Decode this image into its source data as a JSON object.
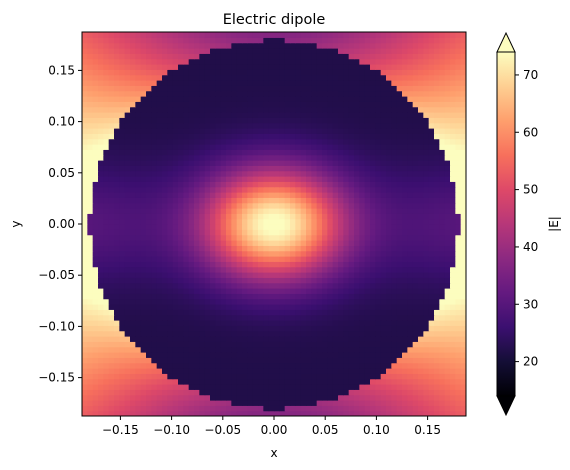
{
  "chart_data": {
    "type": "heatmap",
    "title": "Electric dipole",
    "xlabel": "x",
    "ylabel": "y",
    "xlim": [
      -0.1875,
      0.1875
    ],
    "ylim": [
      -0.1875,
      0.1875
    ],
    "xticks": [
      -0.15,
      -0.1,
      -0.05,
      0.0,
      0.05,
      0.1,
      0.15
    ],
    "yticks": [
      -0.15,
      -0.1,
      -0.05,
      0.0,
      0.05,
      0.1,
      0.15
    ],
    "xtick_labels": [
      "−0.15",
      "−0.10",
      "−0.05",
      "0.00",
      "0.05",
      "0.10",
      "0.15"
    ],
    "ytick_labels": [
      "−0.15",
      "−0.10",
      "−0.05",
      "0.00",
      "0.05",
      "0.10",
      "0.15"
    ],
    "grid": false,
    "grid_shape": [
      72,
      72
    ],
    "circle_radius": 0.18,
    "field_description": "|E| magnitude: peak ~75 at center inside sphere, minima ~22 near (0, ±0.12); outside sphere high (~75) near left/right poles, lower (~35) near top/bottom",
    "colormap": "magma",
    "colorbar": {
      "label": "|E|",
      "range": [
        14,
        74
      ],
      "ticks": [
        20,
        30,
        40,
        50,
        60,
        70
      ],
      "tick_labels": [
        "20",
        "30",
        "40",
        "50",
        "60",
        "70"
      ],
      "extend": "both"
    }
  }
}
